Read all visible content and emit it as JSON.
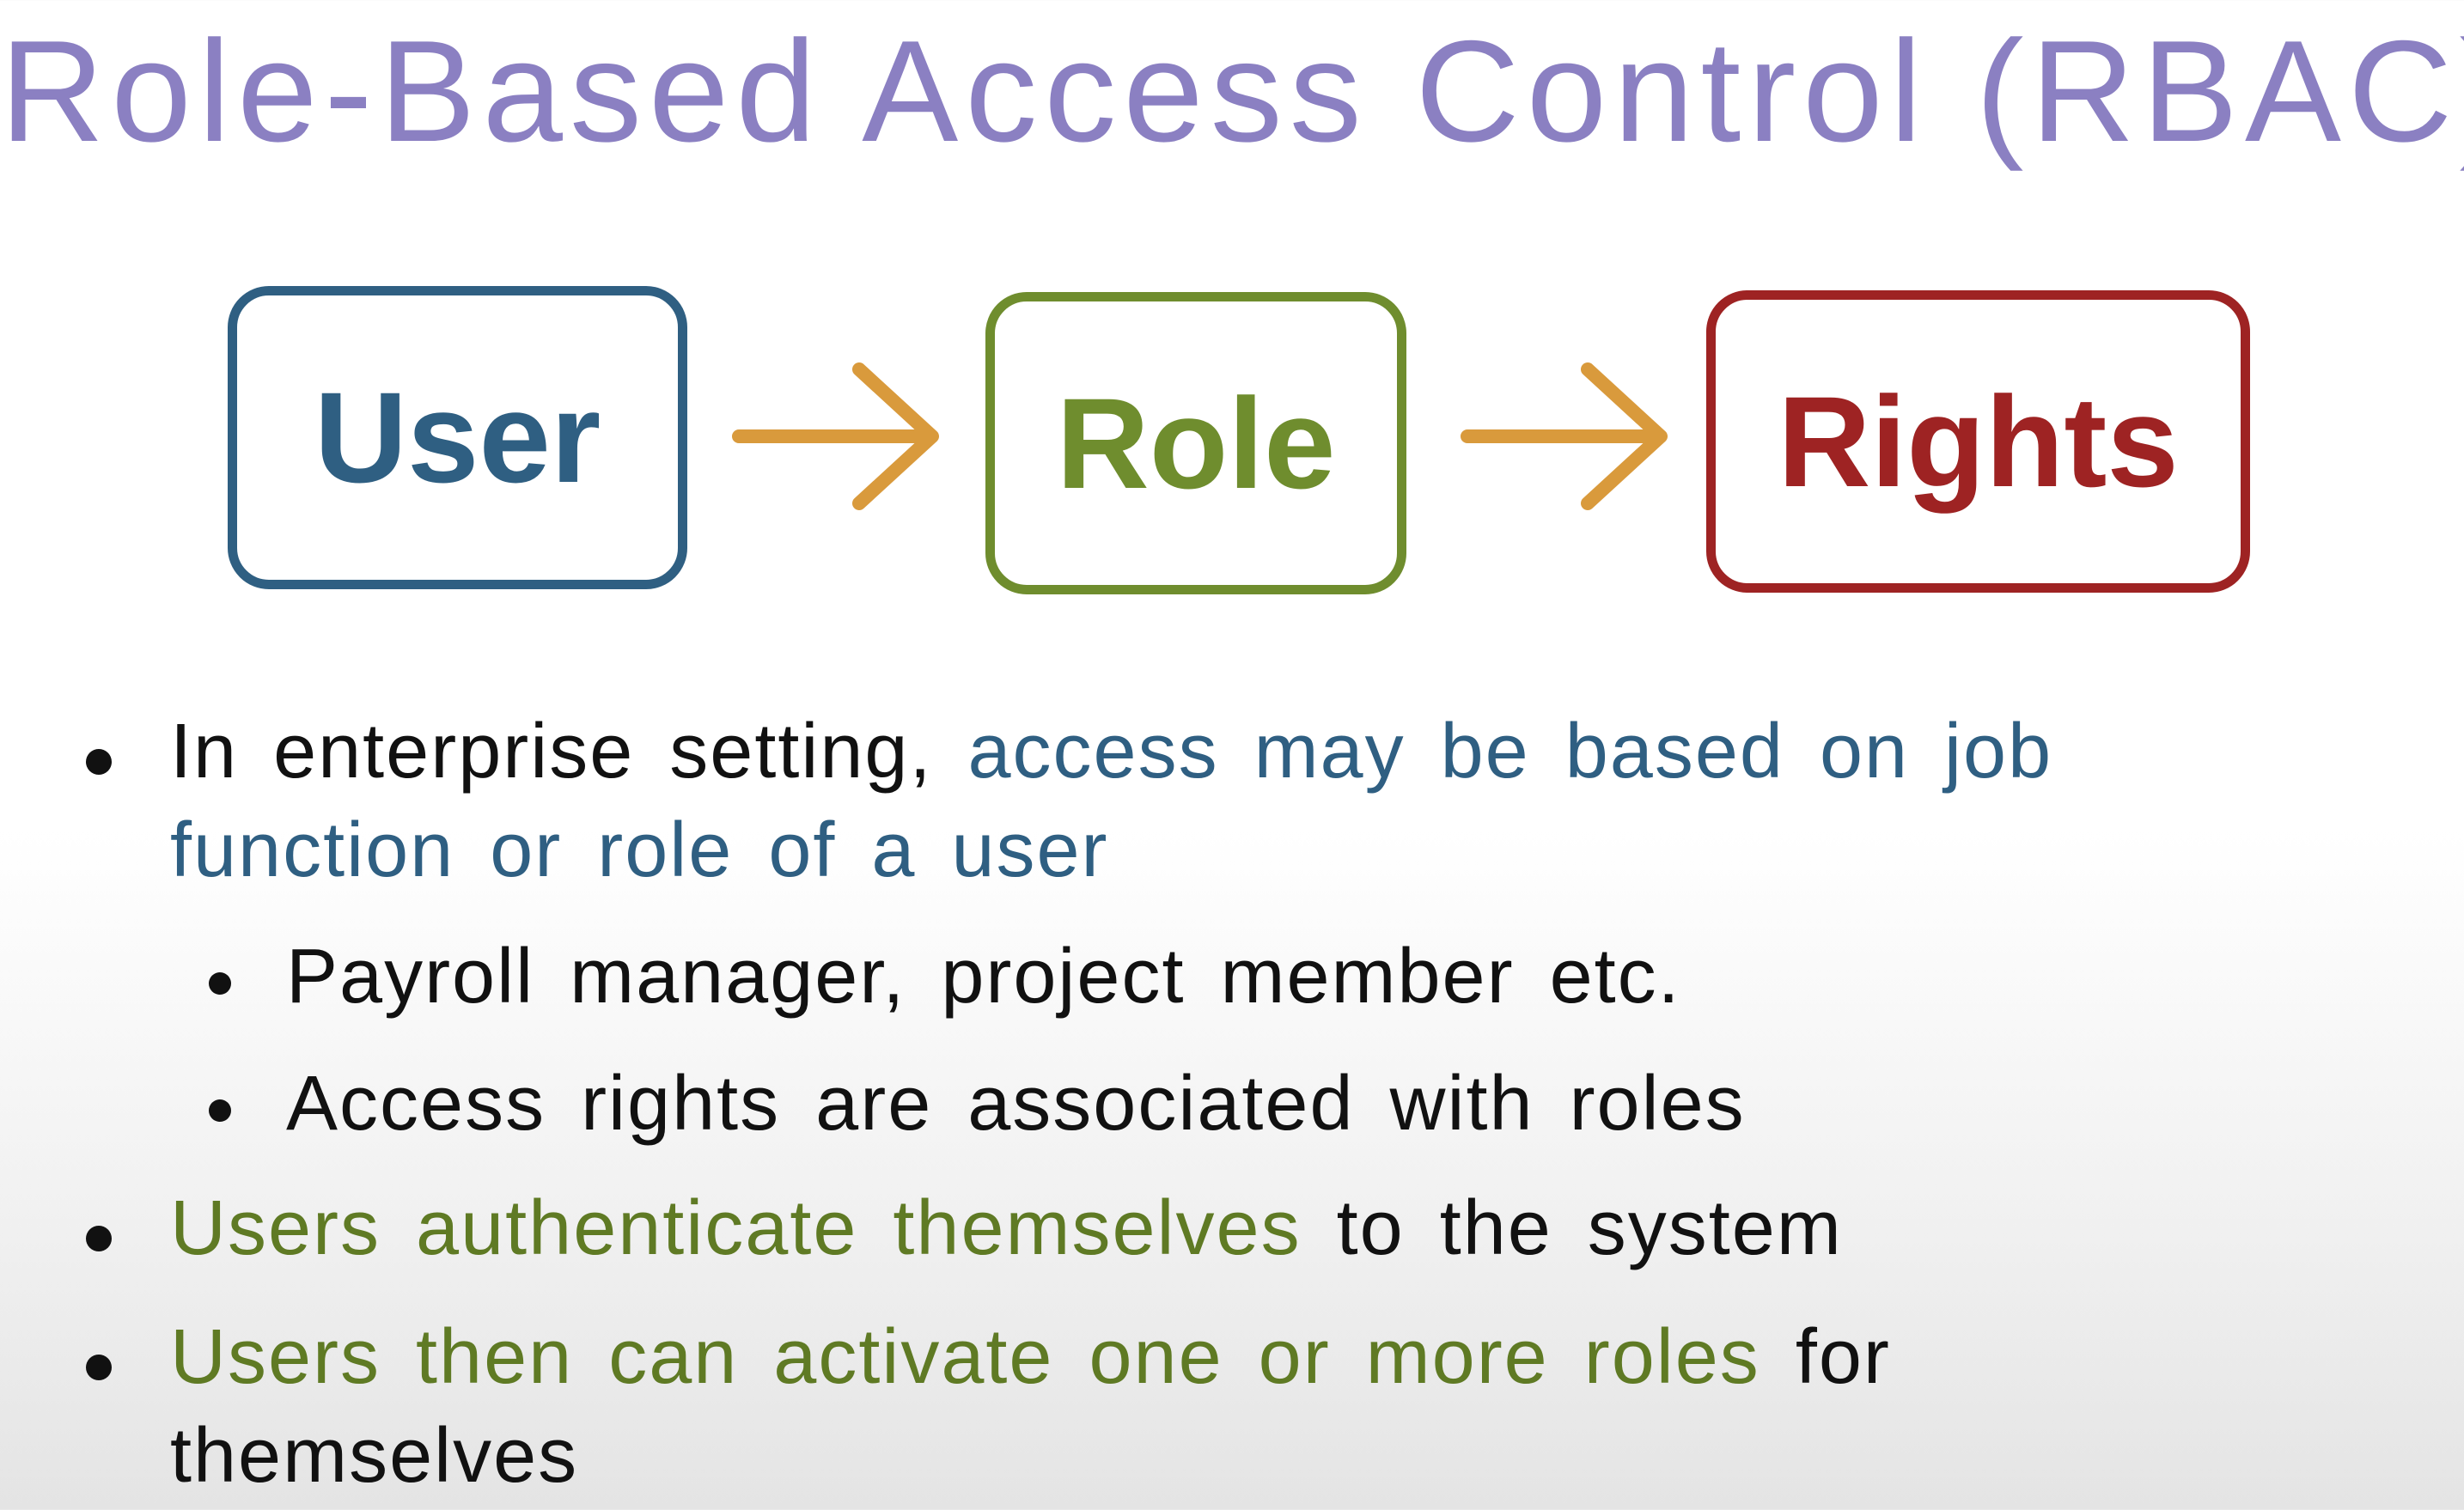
{
  "header": {
    "title": "Role-Based Access Control (RBAC)"
  },
  "nodes": [
    {
      "label": "User"
    },
    {
      "label": "Role"
    },
    {
      "label": "Rights"
    }
  ],
  "bullets": [
    {
      "lines": [
        [
          "In enterprise setting,",
          "access may be based on job"
        ],
        [
          "function or role of a user"
        ]
      ]
    },
    {
      "lines": [
        [
          "Payroll manager, project member etc."
        ]
      ]
    },
    {
      "lines": [
        [
          "Access rights are associated with roles"
        ]
      ]
    },
    {
      "lines": [
        [
          "Users authenticate themselves",
          "to the system"
        ]
      ]
    },
    {
      "lines": [
        [
          "Users then can activate one or more roles",
          "for"
        ],
        [
          "themselves"
        ]
      ]
    }
  ]
}
